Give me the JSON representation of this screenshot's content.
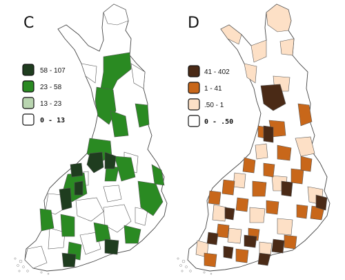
{
  "panels": [
    {
      "id": "C",
      "letter": "C",
      "legend": [
        {
          "label": "58 - 107",
          "color": "#1f3d1f"
        },
        {
          "label": "23 - 58",
          "color": "#2a8a22"
        },
        {
          "label": "13 - 23",
          "color": "#b9d5b0"
        },
        {
          "label": "0 - 13",
          "color": "#ffffff"
        }
      ]
    },
    {
      "id": "D",
      "letter": "D",
      "legend": [
        {
          "label": "41 - 402",
          "color": "#4a2a16"
        },
        {
          "label": "1 - 41",
          "color": "#c8671a"
        },
        {
          "label": ".50 - 1",
          "color": "#fde0c6"
        },
        {
          "label": "0 - .50",
          "color": "#ffffff"
        }
      ]
    }
  ]
}
